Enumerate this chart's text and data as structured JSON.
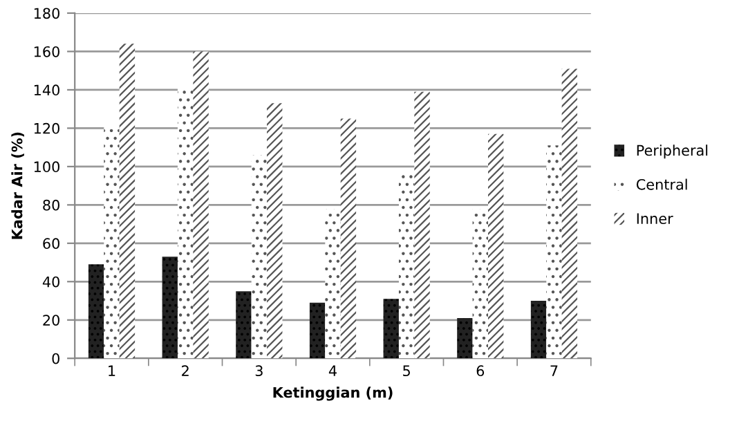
{
  "chart_data": {
    "type": "bar",
    "xlabel": "Ketinggian (m)",
    "ylabel": "Kadar Air (%)",
    "categories": [
      "1",
      "2",
      "3",
      "4",
      "5",
      "6",
      "7"
    ],
    "series": [
      {
        "name": "Peripheral",
        "color": "#222222",
        "values": [
          49,
          53,
          35,
          29,
          31,
          21,
          30
        ]
      },
      {
        "name": "Central",
        "color": "#d8d8d8",
        "values": [
          121,
          141,
          106,
          78,
          96,
          78,
          111
        ]
      },
      {
        "name": "Inner",
        "color": "#bbbbbb",
        "values": [
          164,
          160,
          133,
          125,
          139,
          117,
          151
        ]
      }
    ],
    "ylim": [
      0,
      180
    ],
    "yticks": [
      0,
      20,
      40,
      60,
      80,
      100,
      120,
      140,
      160,
      180
    ],
    "grid": "y",
    "legend": "right"
  }
}
